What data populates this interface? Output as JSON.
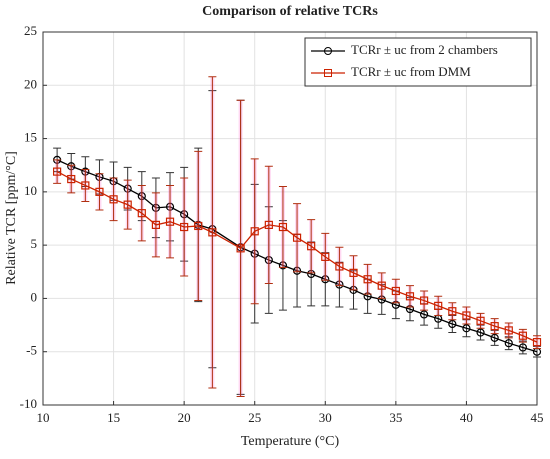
{
  "chart_data": {
    "type": "errorbar-line",
    "title": "Comparison of relative TCRs",
    "xlabel": "Temperature (°C)",
    "ylabel": "Relative TCR [ppm/°C]",
    "xlim": [
      10,
      45
    ],
    "xticks": [
      10,
      15,
      20,
      25,
      30,
      35,
      40,
      45
    ],
    "ylim": [
      -10,
      25
    ],
    "yticks": [
      -10,
      -5,
      0,
      5,
      10,
      15,
      20,
      25
    ],
    "grid": true,
    "legend": "upper right",
    "x": [
      11,
      12,
      13,
      14,
      15,
      16,
      17,
      18,
      19,
      20,
      21,
      22,
      24,
      25,
      26,
      27,
      28,
      29,
      30,
      31,
      32,
      33,
      34,
      35,
      36,
      37,
      38,
      39,
      40,
      41,
      42,
      43,
      44,
      45
    ],
    "series": [
      {
        "name": "TCRr ± uc from 2 chambers",
        "color": "#000000",
        "marker": "circle",
        "values": [
          13.0,
          12.4,
          11.9,
          11.4,
          11.0,
          10.3,
          9.6,
          8.5,
          8.6,
          7.9,
          6.9,
          6.5,
          4.8,
          4.2,
          3.6,
          3.1,
          2.6,
          2.3,
          1.8,
          1.3,
          0.8,
          0.2,
          -0.1,
          -0.6,
          -1.0,
          -1.5,
          -1.9,
          -2.4,
          -2.8,
          -3.2,
          -3.7,
          -4.2,
          -4.6,
          -5.0
        ],
        "errors": [
          1.1,
          1.2,
          1.4,
          1.6,
          1.8,
          2.0,
          2.3,
          2.8,
          3.2,
          4.4,
          7.2,
          13.0,
          13.8,
          6.5,
          5.0,
          4.2,
          3.4,
          3.0,
          2.5,
          2.1,
          1.8,
          1.6,
          1.4,
          1.3,
          1.1,
          1.0,
          0.9,
          0.8,
          0.8,
          0.7,
          0.7,
          0.6,
          0.6,
          0.5
        ]
      },
      {
        "name": "TCRr ± uc from DMM",
        "color": "#cc2200",
        "marker": "square",
        "values": [
          11.9,
          11.2,
          10.6,
          10.0,
          9.3,
          8.8,
          8.0,
          6.9,
          7.2,
          6.7,
          6.8,
          6.2,
          4.7,
          6.3,
          6.9,
          6.7,
          5.7,
          4.9,
          3.9,
          3.0,
          2.4,
          1.8,
          1.2,
          0.7,
          0.2,
          -0.2,
          -0.7,
          -1.2,
          -1.6,
          -2.1,
          -2.6,
          -3.0,
          -3.5,
          -4.1
        ],
        "errors": [
          1.1,
          1.3,
          1.5,
          1.7,
          2.0,
          2.3,
          2.6,
          3.0,
          3.4,
          4.6,
          7.0,
          14.6,
          13.9,
          6.8,
          5.5,
          3.8,
          3.2,
          2.5,
          2.2,
          1.8,
          1.6,
          1.4,
          1.2,
          1.1,
          1.0,
          0.9,
          0.9,
          0.8,
          0.8,
          0.7,
          0.7,
          0.7,
          0.6,
          0.6
        ]
      }
    ]
  }
}
